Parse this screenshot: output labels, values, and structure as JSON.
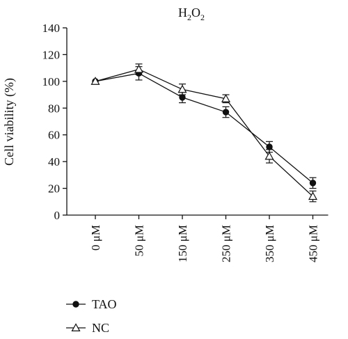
{
  "chart_data": {
    "type": "line",
    "title_main": "H",
    "title_sub1": "2",
    "title_mid": "O",
    "title_sub2": "2",
    "ylabel": "Cell viability (%)",
    "xlabel": "",
    "ylim": [
      0,
      140
    ],
    "yticks": [
      0,
      20,
      40,
      60,
      80,
      100,
      120,
      140
    ],
    "categories": [
      "0 μM",
      "50 μM",
      "150 μM",
      "250 μM",
      "350 μM",
      "450 μM"
    ],
    "grid": false,
    "legend_position": "bottom-left",
    "series": [
      {
        "name": "TAO",
        "marker": "circle",
        "values": [
          100,
          106,
          88,
          77,
          51,
          24
        ],
        "errors": [
          0,
          5,
          4,
          4,
          4,
          4
        ]
      },
      {
        "name": "NC",
        "marker": "triangle",
        "values": [
          100,
          109,
          94,
          87,
          44,
          14
        ],
        "errors": [
          0,
          4,
          4,
          3,
          5,
          4
        ]
      }
    ]
  }
}
